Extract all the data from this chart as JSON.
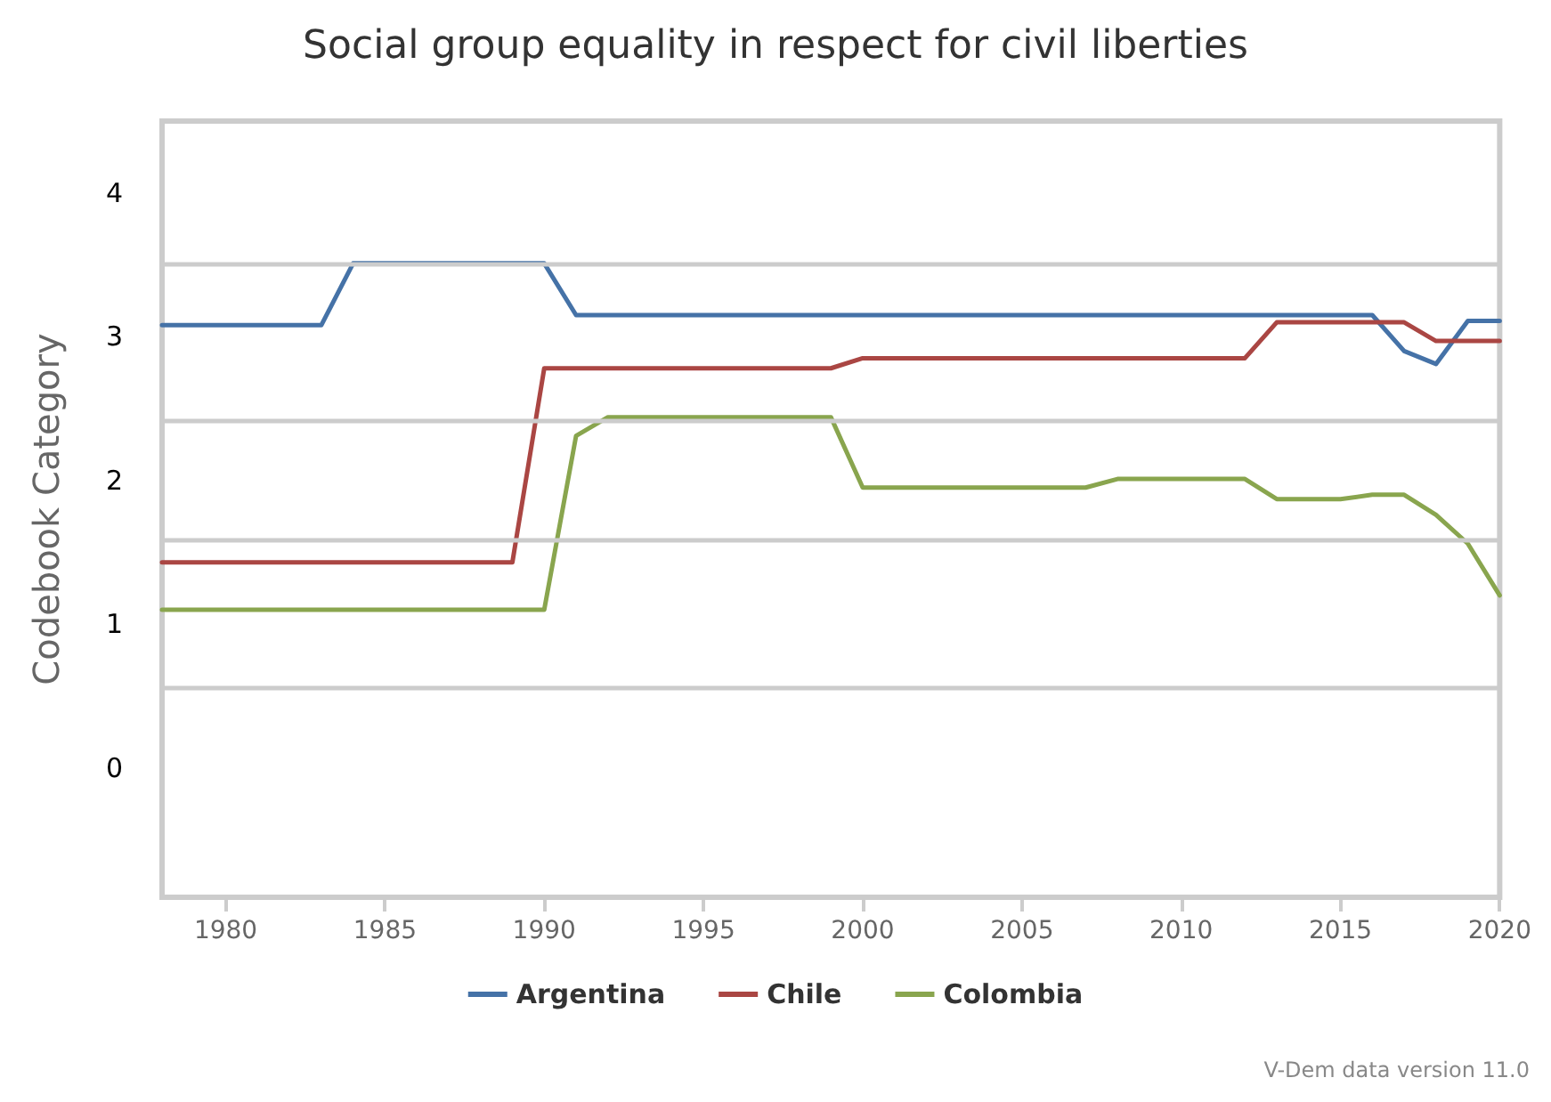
{
  "chart_data": {
    "type": "line",
    "title": "Social group equality in respect for civil liberties",
    "ylabel": "Codebook Category",
    "x": [
      1978,
      1979,
      1980,
      1981,
      1982,
      1983,
      1984,
      1985,
      1986,
      1987,
      1988,
      1989,
      1990,
      1991,
      1992,
      1993,
      1994,
      1995,
      1996,
      1997,
      1998,
      1999,
      2000,
      2001,
      2002,
      2003,
      2004,
      2005,
      2006,
      2007,
      2008,
      2009,
      2010,
      2011,
      2012,
      2013,
      2014,
      2015,
      2016,
      2017,
      2018,
      2019,
      2020
    ],
    "series": [
      {
        "name": "Argentina",
        "color": "#4572a7",
        "values": [
          3.08,
          3.08,
          3.08,
          3.08,
          3.08,
          3.08,
          3.51,
          3.51,
          3.51,
          3.51,
          3.51,
          3.51,
          3.51,
          3.15,
          3.15,
          3.15,
          3.15,
          3.15,
          3.15,
          3.15,
          3.15,
          3.15,
          3.15,
          3.15,
          3.15,
          3.15,
          3.15,
          3.15,
          3.15,
          3.15,
          3.15,
          3.15,
          3.15,
          3.15,
          3.15,
          3.15,
          3.15,
          3.15,
          3.15,
          2.9,
          2.81,
          3.11,
          3.11
        ]
      },
      {
        "name": "Chile",
        "color": "#aa4643",
        "values": [
          1.43,
          1.43,
          1.43,
          1.43,
          1.43,
          1.43,
          1.43,
          1.43,
          1.43,
          1.43,
          1.43,
          1.43,
          2.78,
          2.78,
          2.78,
          2.78,
          2.78,
          2.78,
          2.78,
          2.78,
          2.78,
          2.78,
          2.85,
          2.85,
          2.85,
          2.85,
          2.85,
          2.85,
          2.85,
          2.85,
          2.85,
          2.85,
          2.85,
          2.85,
          2.85,
          3.1,
          3.1,
          3.1,
          3.1,
          3.1,
          2.97,
          2.97,
          2.97
        ]
      },
      {
        "name": "Colombia",
        "color": "#89a54e",
        "values": [
          1.1,
          1.1,
          1.1,
          1.1,
          1.1,
          1.1,
          1.1,
          1.1,
          1.1,
          1.1,
          1.1,
          1.1,
          1.1,
          2.31,
          2.44,
          2.44,
          2.44,
          2.44,
          2.44,
          2.44,
          2.44,
          2.44,
          1.95,
          1.95,
          1.95,
          1.95,
          1.95,
          1.95,
          1.95,
          1.95,
          2.01,
          2.01,
          2.01,
          2.01,
          2.01,
          1.87,
          1.87,
          1.87,
          1.9,
          1.9,
          1.76,
          1.56,
          1.2
        ]
      }
    ],
    "xlim": [
      1978,
      2020
    ],
    "xticks": [
      1980,
      1985,
      1990,
      1995,
      2000,
      2005,
      2010,
      2015,
      2020
    ],
    "ylim": [
      -0.9,
      4.5
    ],
    "yticks": [
      0,
      1,
      2,
      3,
      4
    ],
    "ref_lines": [
      {
        "axis": "y",
        "value": 3.51,
        "color": "#cccccc"
      },
      {
        "axis": "y",
        "value": 2.41,
        "color": "#cccccc"
      },
      {
        "axis": "y",
        "value": 1.59,
        "color": "#cccccc"
      },
      {
        "axis": "y",
        "value": 0.56,
        "color": "#cccccc"
      }
    ],
    "annotations": [
      "V-Dem data version 11.0"
    ],
    "grid": false,
    "legend": "bottom",
    "marker": "none",
    "line_style": "solid"
  }
}
